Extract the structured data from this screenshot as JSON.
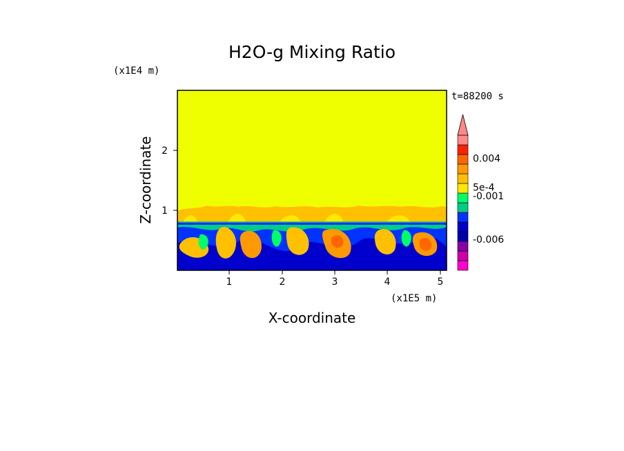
{
  "chart_data": {
    "type": "heatmap",
    "title": "H2O-g Mixing Ratio",
    "xlabel": "X-coordinate",
    "ylabel": "Z-coordinate",
    "x_scale_label": "(x1E5 m)",
    "y_scale_label": "(x1E4 m)",
    "time_label": "t=88200 s",
    "xlim": [
      0,
      5.1
    ],
    "ylim": [
      0,
      3
    ],
    "x_ticks": [
      1,
      2,
      3,
      4,
      5
    ],
    "y_ticks": [
      1,
      2
    ],
    "colorbar": {
      "extend": "max",
      "level_colors": [
        "#ff00cc",
        "#cc00aa",
        "#8800aa",
        "#0000aa",
        "#0000cc",
        "#0033ff",
        "#00cc88",
        "#00ff66",
        "#ffe800",
        "#ffc000",
        "#ff9900",
        "#ff6600",
        "#ff2200",
        "#ff8888"
      ],
      "labels": [
        {
          "text": "0.004",
          "level": 11.6
        },
        {
          "text": "5e-4",
          "level": 8.6
        },
        {
          "text": "-0.001",
          "level": 7.7
        },
        {
          "text": "-0.006",
          "level": 3.2
        }
      ]
    },
    "fields": {
      "upper_value_color": "#f0ff00",
      "lower_boundary_z": 0.83,
      "mixed_layer_top_z": 1.05
    }
  }
}
